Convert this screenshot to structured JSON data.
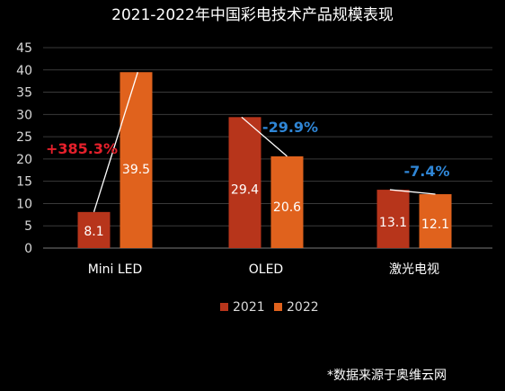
{
  "chart_data": {
    "type": "bar",
    "title": "2021-2022年中国彩电技术产品规模表现",
    "categories": [
      "Mini LED",
      "OLED",
      "激光电视"
    ],
    "series": [
      {
        "name": "2021",
        "values": [
          8.1,
          29.4,
          13.1
        ],
        "color": "#B7351B"
      },
      {
        "name": "2022",
        "values": [
          39.5,
          20.6,
          12.1
        ],
        "color": "#E0621D"
      }
    ],
    "value_labels": [
      [
        "8.1",
        "29.4",
        "13.1"
      ],
      [
        "39.5",
        "20.6",
        "12.1"
      ]
    ],
    "ylim": [
      0,
      45
    ],
    "y_ticks": [
      "0",
      "5",
      "10",
      "15",
      "20",
      "25",
      "30",
      "35",
      "40",
      "45"
    ],
    "grid": true,
    "legend_position": "bottom",
    "changes": [
      {
        "text": "+385.3%",
        "color": "#E5202B"
      },
      {
        "text": "-29.9%",
        "color": "#2F86D6"
      },
      {
        "text": "-7.4%",
        "color": "#2F86D6"
      }
    ]
  },
  "footnote": "*数据来源于奥维云网",
  "colors": {
    "background": "#000000",
    "text": "#FFFFFF",
    "axis_text": "#D9D9D9",
    "grid": "#3A3A3A"
  }
}
